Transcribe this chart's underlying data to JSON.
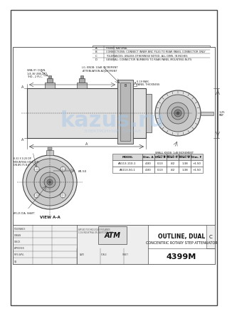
{
  "bg_color": "#ffffff",
  "border_color": "#444444",
  "title_line1": "OUTLINE, DUAL",
  "title_line2": "CONCENTRIC ROTARY STEP ATTENUATOR",
  "part_number": "4399M",
  "model_rows": [
    [
      "AS113-110-1",
      "4.00",
      "0.13",
      ".82",
      "1.38",
      "+1.50"
    ],
    [
      "AS113-50-1",
      "4.00",
      "0.13",
      ".82",
      "1.38",
      "+1.50"
    ]
  ],
  "model_headers": [
    "MODEL",
    "Dim. A",
    "Dim. B",
    "Dim. C",
    "Dim. D",
    "Dim. F"
  ],
  "note_labels": [
    "A",
    "B",
    "C",
    "D"
  ],
  "note_texts": [
    "FINISH: NATURAL",
    "CONNECTIONS: CONNECT INNER BNC PLUG TO REAR PANEL CONNECTOR ONLY",
    "TOLERANCES: UNLESS OTHERWISE NOTED, ALL DIMS. IN INCHES",
    "GENERAL: CONNECTOR NUMBERS TO REAR PANEL MOUNTING NUTS"
  ],
  "view_label": "VIEW A-A",
  "annotation1": "LG. KNOB: 10dB INCREMENT\nATTENUATION ADJUSTMENT",
  "annotation2": "SMALL KNOB: 1dB INCREMENT\nATTENUATION ADJUSTMENT",
  "panel_note": "0.19 MAX.\nPANEL THICKNESS",
  "shaft_note": "Ø0.25 DIA. SHAFT",
  "thread_note": "SMA (F) CONN.\n1/4-36 UNS-2A\nTHD., 2 PLC.",
  "hole_note": "8-32 X 0.20 DP.\nMOUNTING HOLE 4 PL.\nON Ø0.75 B.C.",
  "dim_f_note": "+1.50\nREF",
  "rev_c": "C",
  "drawing_no": "4399M",
  "dim_1p25": "1.25\nREF",
  "watermark_text": "kazus.ru",
  "watermark_sub": "ЭЛЕКТРОННЫЙ  ПОРТАЛ",
  "watermark_color": "#a8c8e8",
  "watermark_alpha": 0.5,
  "line_color": "#444444",
  "light_gray": "#e0e0e0",
  "mid_gray": "#c8c8c8",
  "dark_gray": "#888888"
}
